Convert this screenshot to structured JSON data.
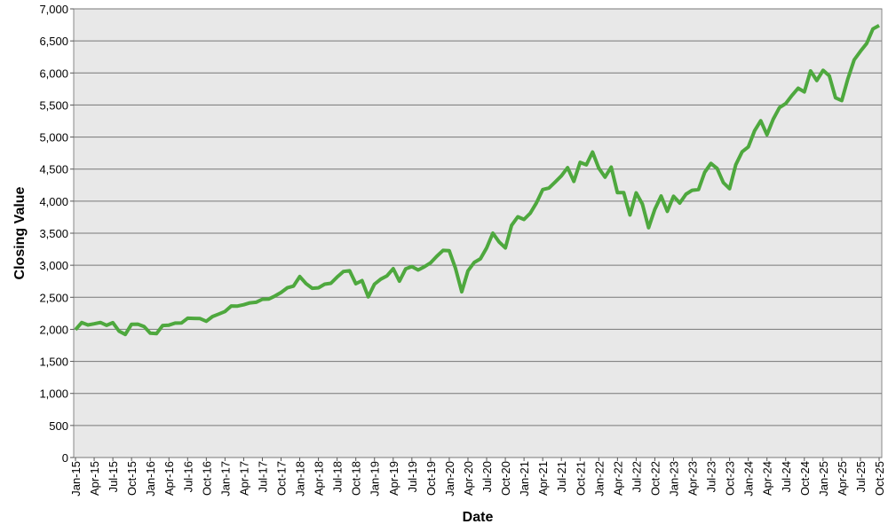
{
  "chart_data": {
    "type": "line",
    "y_label": "Closing Value",
    "x_label": "Date",
    "categories": [
      "Jan-15",
      null,
      null,
      "Apr-15",
      null,
      null,
      "Jul-15",
      null,
      null,
      "Oct-15",
      null,
      null,
      "Jan-16",
      null,
      null,
      "Apr-16",
      null,
      null,
      "Jul-16",
      null,
      null,
      "Oct-16",
      null,
      null,
      "Jan-17",
      null,
      null,
      "Apr-17",
      null,
      null,
      "Jul-17",
      null,
      null,
      "Oct-17",
      null,
      null,
      "Jan-18",
      null,
      null,
      "Apr-18",
      null,
      null,
      "Jul-18",
      null,
      null,
      "Oct-18",
      null,
      null,
      "Jan-19",
      null,
      null,
      "Apr-19",
      null,
      null,
      "Jul-19",
      null,
      null,
      "Oct-19",
      null,
      null,
      "Jan-20",
      null,
      null,
      "Apr-20",
      null,
      null,
      "Jul-20",
      null,
      null,
      "Oct-20",
      null,
      null,
      "Jan-21",
      null,
      null,
      "Apr-21",
      null,
      null,
      "Jul-21",
      null,
      null,
      "Oct-21",
      null,
      null,
      "Jan-22",
      null,
      null,
      "Apr-22",
      null,
      null,
      "Jul-22",
      null,
      null,
      "Oct-22",
      null,
      null,
      "Jan-23",
      null,
      null,
      "Apr-23",
      null,
      null,
      "Jul-23",
      null,
      null,
      "Oct-23",
      null,
      null,
      "Jan-24",
      null,
      null,
      "Apr-24",
      null,
      null,
      "Jul-24",
      null,
      null,
      "Oct-24",
      null,
      null,
      "Jan-25",
      null,
      null,
      "Apr-25",
      null,
      null,
      "Jul-25",
      null,
      null,
      "Oct-25"
    ],
    "values": [
      1995,
      2105,
      2068,
      2086,
      2107,
      2063,
      2104,
      1972,
      1920,
      2079,
      2080,
      2044,
      1940,
      1932,
      2060,
      2065,
      2097,
      2099,
      2174,
      2171,
      2168,
      2126,
      2199,
      2239,
      2279,
      2364,
      2363,
      2384,
      2412,
      2423,
      2470,
      2472,
      2519,
      2575,
      2648,
      2674,
      2824,
      2714,
      2641,
      2648,
      2705,
      2718,
      2816,
      2902,
      2914,
      2712,
      2760,
      2507,
      2704,
      2784,
      2834,
      2946,
      2752,
      2942,
      2980,
      2926,
      2977,
      3038,
      3141,
      3231,
      3226,
      2954,
      2585,
      2912,
      3044,
      3100,
      3271,
      3500,
      3363,
      3270,
      3622,
      3756,
      3714,
      3811,
      3973,
      4181,
      4204,
      4298,
      4395,
      4523,
      4308,
      4605,
      4567,
      4766,
      4516,
      4374,
      4530,
      4132,
      4132,
      3785,
      4130,
      3955,
      3586,
      3872,
      4080,
      3840,
      4077,
      3970,
      4109,
      4169,
      4180,
      4450,
      4589,
      4508,
      4288,
      4194,
      4568,
      4770,
      4846,
      5096,
      5254,
      5036,
      5278,
      5460,
      5522,
      5648,
      5762,
      5705,
      6032,
      5882,
      6041,
      5955,
      5612,
      5569,
      5912,
      6205,
      6339,
      6460,
      6688,
      6740
    ],
    "color": "#4ea83e",
    "ylim": [
      0,
      7000
    ],
    "yticks": [
      0,
      500,
      {
        "value": 1000,
        "label": "1,000"
      },
      {
        "value": 1500,
        "label": "1,500"
      },
      {
        "value": 2000,
        "label": "2,000"
      },
      {
        "value": 2500,
        "label": "2,500"
      },
      {
        "value": 3000,
        "label": "3,000"
      },
      {
        "value": 3500,
        "label": "3,500"
      },
      {
        "value": 4000,
        "label": "4,000"
      },
      {
        "value": 4500,
        "label": "4,500"
      },
      {
        "value": 5000,
        "label": "5,000"
      },
      {
        "value": 5500,
        "label": "5,500"
      },
      {
        "value": 6000,
        "label": "6,000"
      },
      {
        "value": 6500,
        "label": "6,500"
      },
      {
        "value": 7000,
        "label": "7,000"
      }
    ],
    "grid": true
  }
}
